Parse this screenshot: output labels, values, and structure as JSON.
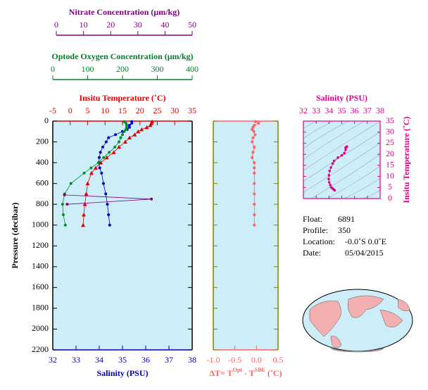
{
  "chart_data": [
    {
      "type": "profile",
      "ylabel": "Pressure (decibar)",
      "ylim": [
        0,
        2200
      ],
      "yticks": [
        0,
        200,
        400,
        600,
        800,
        1000,
        1200,
        1400,
        1600,
        1800,
        2000,
        2200
      ],
      "axes": [
        {
          "label": "Nitrate Concentration (μm/kg)",
          "color": "#800080",
          "xlim": [
            0,
            50
          ],
          "xticks": [
            0,
            10,
            20,
            30,
            40,
            50
          ]
        },
        {
          "label": "Optode Oxygen Concentration (μm/kg)",
          "color": "#00802a",
          "xlim": [
            0,
            400
          ],
          "xticks": [
            0,
            100,
            200,
            300,
            400
          ]
        },
        {
          "label": "Insitu Temperature (˚C)",
          "color": "#e00000",
          "xlim": [
            -5,
            35
          ],
          "xticks": [
            -5,
            0,
            5,
            10,
            15,
            20,
            25,
            30,
            35
          ]
        },
        {
          "label": "Salinity (PSU)",
          "color": "#0000b0",
          "xlim": [
            32,
            38
          ],
          "xticks": [
            32,
            33,
            34,
            35,
            36,
            37,
            38
          ]
        }
      ],
      "series": [
        {
          "axis": 2,
          "color": "#e00000",
          "marker": "triangle",
          "pressure": [
            5,
            20,
            40,
            60,
            80,
            100,
            130,
            160,
            200,
            250,
            300,
            350,
            400,
            450,
            500,
            600,
            700,
            800,
            900,
            1000
          ],
          "values": [
            23.5,
            23.3,
            23,
            22,
            20.5,
            19.5,
            18.5,
            17,
            15.8,
            14,
            12.5,
            10.5,
            8.8,
            7.3,
            6.1,
            5,
            4.6,
            4.2,
            3.9,
            3.7
          ]
        },
        {
          "axis": 3,
          "color": "#0000d0",
          "marker": "circle",
          "pressure": [
            5,
            20,
            40,
            60,
            80,
            100,
            130,
            160,
            200,
            250,
            300,
            350,
            400,
            450,
            500,
            600,
            700,
            800,
            900,
            1000
          ],
          "values": [
            35.4,
            35.4,
            35.3,
            35.3,
            35.2,
            35.0,
            34.7,
            34.4,
            34.3,
            34.15,
            34.05,
            34.0,
            33.98,
            34.02,
            34.1,
            34.18,
            34.28,
            34.35,
            34.4,
            34.45
          ]
        },
        {
          "axis": 1,
          "color": "#00902a",
          "marker": "circle",
          "pressure": [
            5,
            20,
            40,
            60,
            80,
            100,
            130,
            160,
            200,
            250,
            300,
            350,
            400,
            450,
            500,
            600,
            700,
            800,
            900,
            1000
          ],
          "values": [
            205,
            210,
            212,
            212,
            210,
            205,
            200,
            195,
            190,
            178,
            162,
            146,
            131,
            110,
            90,
            52,
            34,
            28,
            30,
            36
          ]
        },
        {
          "axis": 0,
          "color": "#800080",
          "marker": "circle",
          "pressure": [
            710,
            750,
            800
          ],
          "values": [
            3,
            35,
            4
          ]
        }
      ]
    },
    {
      "type": "profile",
      "ylim": [
        0,
        2200
      ],
      "yticks": [
        0,
        200,
        400,
        600,
        800,
        1000,
        1200,
        1400,
        1600,
        1800,
        2000,
        2200
      ],
      "axes": [
        {
          "label": {
            "prefix": "ΔT= T",
            "sup1": "Opt",
            "mid": " - T",
            "sup2": "SBE",
            "suffix": " (˚C)"
          },
          "color": "#ff6060",
          "xlim": [
            -1.0,
            0.5
          ],
          "xticks": [
            {
              "value": -1.0,
              "label": "-1.0"
            },
            {
              "value": -0.5,
              "label": "-0.5"
            },
            {
              "value": 0.0,
              "label": "0.0"
            },
            {
              "value": 0.5,
              "label": "0.5"
            }
          ]
        }
      ],
      "series": [
        {
          "axis": 0,
          "color": "#ff6060",
          "marker": "circle",
          "pressure": [
            5,
            20,
            40,
            60,
            80,
            100,
            130,
            160,
            200,
            250,
            300,
            350,
            400,
            450,
            500,
            600,
            700,
            800,
            900,
            1000
          ],
          "values": [
            -0.02,
            0.05,
            -0.05,
            -0.08,
            -0.1,
            -0.06,
            -0.03,
            -0.08,
            -0.1,
            -0.05,
            -0.08,
            -0.1,
            -0.05,
            -0.05,
            -0.05,
            -0.05,
            -0.05,
            -0.05,
            -0.05,
            -0.05
          ]
        }
      ]
    },
    {
      "type": "ts",
      "xlabel": "Salinity (PSU)",
      "xlim": [
        32,
        38
      ],
      "xticks": [
        32,
        33,
        34,
        35,
        36,
        37,
        38
      ],
      "ylabel": "Insitu Temperature (˚C)",
      "ylim": [
        0,
        35
      ],
      "yticks": [
        0,
        5,
        10,
        15,
        20,
        25,
        30,
        35
      ],
      "color": "#e0008c",
      "series": [
        {
          "color": "#e0008c",
          "x": [
            35.4,
            35.4,
            35.3,
            35.3,
            35.2,
            35.0,
            34.7,
            34.4,
            34.3,
            34.15,
            34.05,
            34.0,
            33.98,
            34.02,
            34.1,
            34.18,
            34.28,
            34.35,
            34.4,
            34.45
          ],
          "values": [
            23.5,
            23.3,
            23,
            22,
            20.5,
            19.5,
            18.5,
            17,
            15.8,
            14,
            12.5,
            10.5,
            8.8,
            7.3,
            6.1,
            5,
            4.6,
            4.2,
            3.9,
            3.7
          ]
        }
      ]
    }
  ],
  "float_info": [
    {
      "label": "Float:",
      "value": "6891"
    },
    {
      "label": "Profile:",
      "value": "350"
    },
    {
      "label": "Location:",
      "value": "-0.0˚S   0.0˚E"
    },
    {
      "label": "Date:",
      "value": "05/04/2015"
    }
  ]
}
